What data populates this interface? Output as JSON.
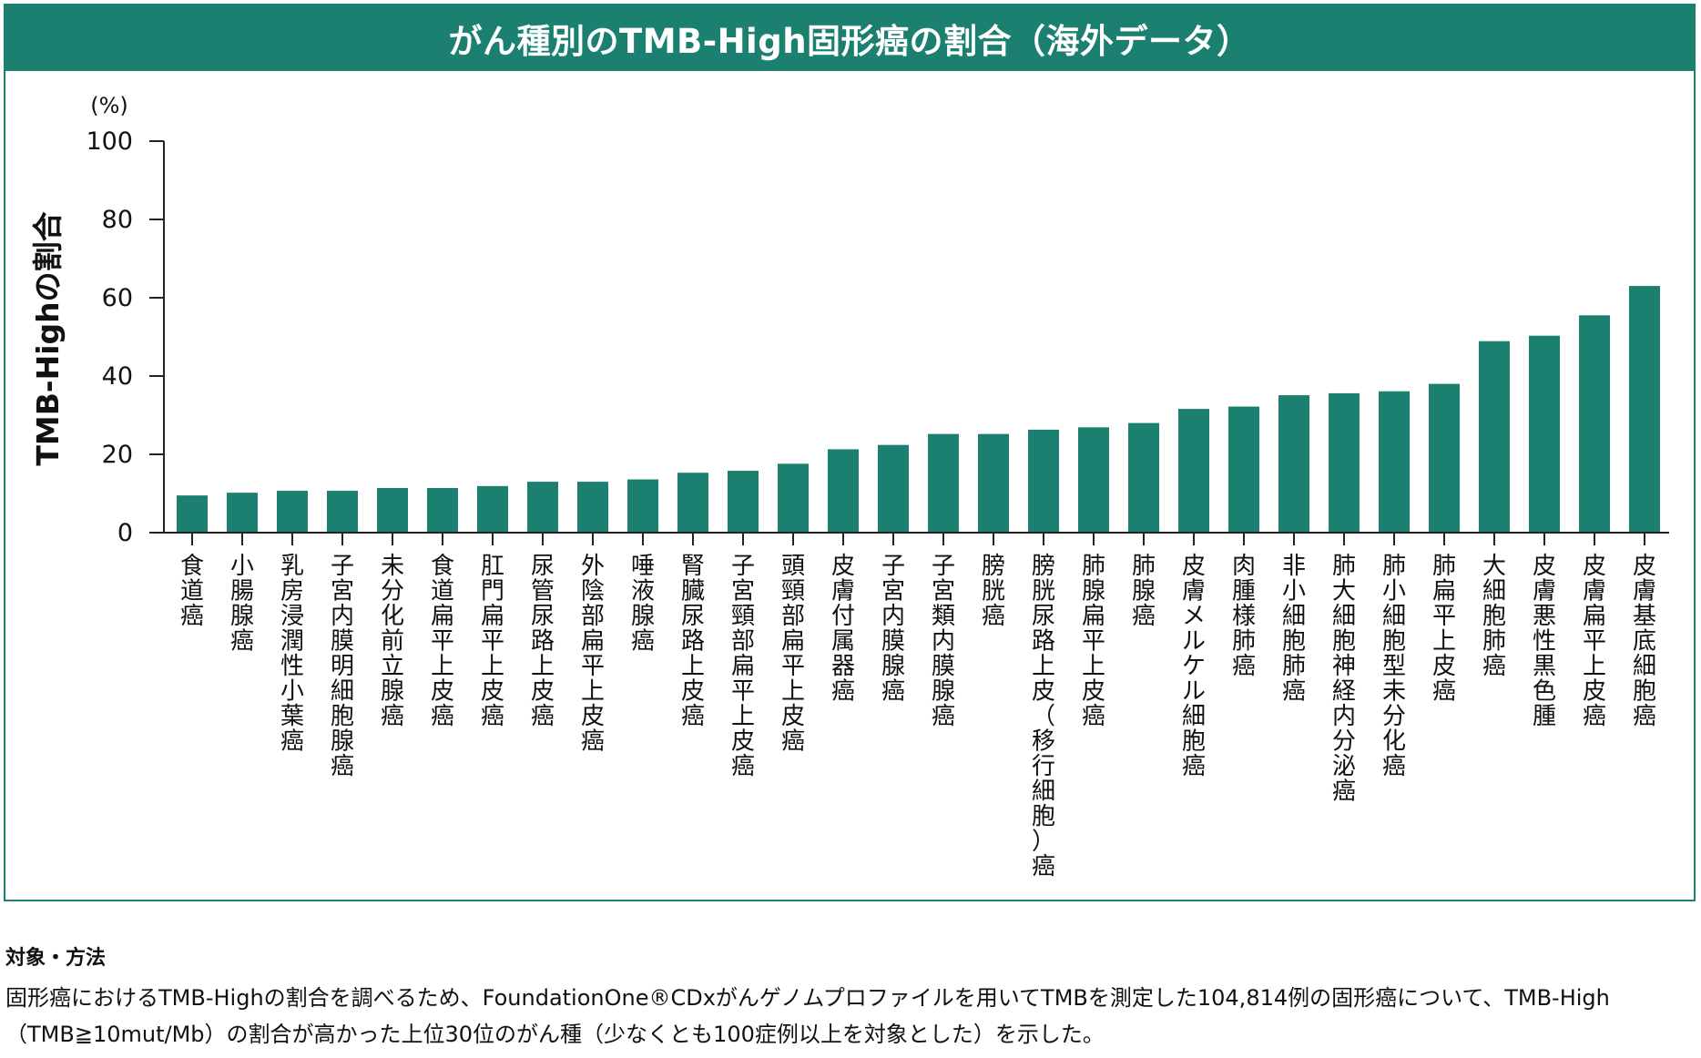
{
  "colors": {
    "accent": "#1b8070",
    "bar": "#1b8070",
    "axis": "#222222",
    "title_text": "#ffffff"
  },
  "chart_data": {
    "type": "bar",
    "title": "がん種別のTMB-High固形癌の割合（海外データ）",
    "ylabel": "TMB-Highの割合",
    "yunit": "(%)",
    "xlabel": "",
    "ylim": [
      0,
      100
    ],
    "yticks": [
      0,
      20,
      40,
      60,
      80,
      100
    ],
    "grid": false,
    "categories": [
      "食道癌",
      "小腸腺癌",
      "乳房浸潤性小葉癌",
      "子宮内膜明細胞腺癌",
      "未分化前立腺癌",
      "食道扁平上皮癌",
      "肛門扁平上皮癌",
      "尿管尿路上皮癌",
      "外陰部扁平上皮癌",
      "唾液腺癌",
      "腎臓尿路上皮癌",
      "子宮頸部扁平上皮癌",
      "頭頸部扁平上皮癌",
      "皮膚付属器癌",
      "子宮内膜腺癌",
      "子宮類内膜腺癌",
      "膀胱癌",
      "膀胱尿路上皮（移行細胞）癌",
      "肺腺扁平上皮癌",
      "肺腺癌",
      "皮膚メルケル細胞癌",
      "肉腫様肺癌",
      "非小細胞肺癌",
      "肺大細胞神経内分泌癌",
      "肺小細胞型未分化癌",
      "肺扁平上皮癌",
      "大細胞肺癌",
      "皮膚悪性黒色腫",
      "皮膚扁平上皮癌",
      "皮膚基底細胞癌"
    ],
    "values": [
      9.5,
      10.2,
      10.7,
      10.7,
      11.4,
      11.4,
      11.9,
      13.0,
      13.0,
      13.6,
      15.3,
      15.8,
      17.6,
      21.3,
      22.4,
      25.2,
      25.2,
      26.3,
      26.9,
      28.0,
      31.6,
      32.2,
      35.1,
      35.6,
      36.1,
      38.0,
      48.9,
      50.3,
      55.5,
      63.0
    ]
  },
  "notes": {
    "heading": "対象・方法",
    "body": "固形癌におけるTMB-Highの割合を調べるため、FoundationOne®CDxがんゲノムプロファイルを用いてTMBを測定した104,814例の固形癌について、TMB-High（TMB≧10mut/Mb）の割合が高かった上位30位のがん種（少なくとも100症例以上を対象とした）を示した。"
  }
}
